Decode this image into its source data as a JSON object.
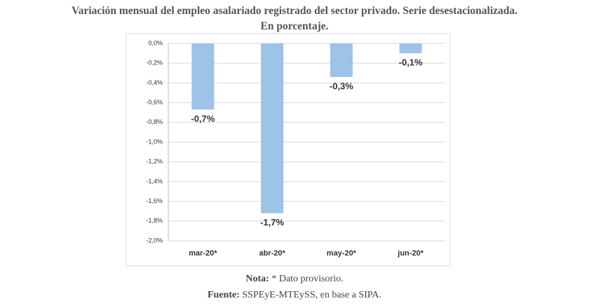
{
  "chart_data": {
    "type": "bar",
    "title": "Variación mensual del empleo asalariado registrado del sector privado. Serie desestacionalizada.",
    "subtitle": "En porcentaje.",
    "categories": [
      "mar-20*",
      "abr-20*",
      "may-20*",
      "jun-20*"
    ],
    "values": [
      -0.67,
      -1.72,
      -0.34,
      -0.1
    ],
    "value_labels": [
      "-0,7%",
      "-1,7%",
      "-0,3%",
      "-0,1%"
    ],
    "color": "#9dc3e6",
    "ylim": [
      -2.0,
      0.0
    ],
    "yticks": [
      {
        "value": 0,
        "label": "0,0%"
      },
      {
        "value": -0.2,
        "label": "-0,2%"
      },
      {
        "value": -0.4,
        "label": "-0,4%"
      },
      {
        "value": -0.6,
        "label": "-0,6%"
      },
      {
        "value": -0.8,
        "label": "-0,8%"
      },
      {
        "value": -1.0,
        "label": "-1,0%"
      },
      {
        "value": -1.2,
        "label": "-1,2%"
      },
      {
        "value": -1.4,
        "label": "-1,4%"
      },
      {
        "value": -1.6,
        "label": "-1,6%"
      },
      {
        "value": -1.8,
        "label": "-1,8%"
      },
      {
        "value": -2.0,
        "label": "-2,0%"
      }
    ],
    "grid": true,
    "notes": [
      {
        "label": "Nota:",
        "text": "* Dato provisorio."
      },
      {
        "label": "Fuente:",
        "text": "SSPEyE-MTEySS, en base a SIPA."
      }
    ]
  }
}
